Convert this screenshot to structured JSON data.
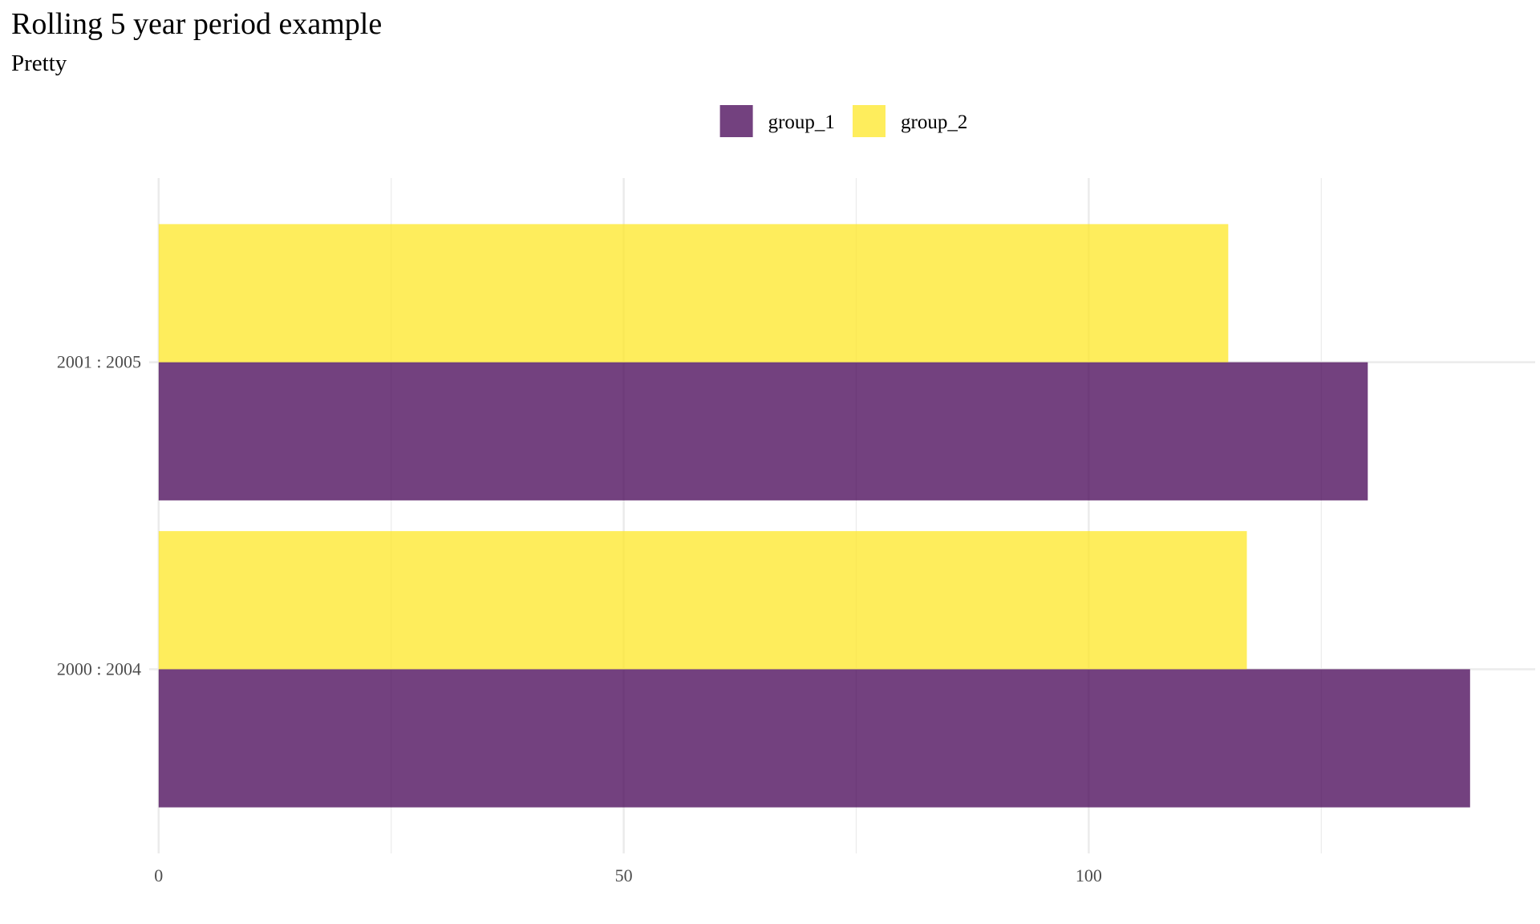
{
  "chart_data": {
    "type": "bar",
    "orientation": "horizontal",
    "title": "Rolling 5 year period example",
    "subtitle": "Pretty",
    "xlabel": "",
    "ylabel": "",
    "categories": [
      "2000 : 2004",
      "2001 : 2005"
    ],
    "series": [
      {
        "name": "group_1",
        "color": "#440154",
        "values": [
          141,
          130
        ]
      },
      {
        "name": "group_2",
        "color": "#FDE725",
        "values": [
          117,
          115
        ]
      }
    ],
    "xlim": [
      -0.5,
      148
    ],
    "x_ticks": [
      0,
      50,
      100
    ],
    "x_tick_labels": [
      "0",
      "50",
      "100"
    ],
    "grid": true,
    "legend_position": "top",
    "bar_opacity": 0.75
  }
}
